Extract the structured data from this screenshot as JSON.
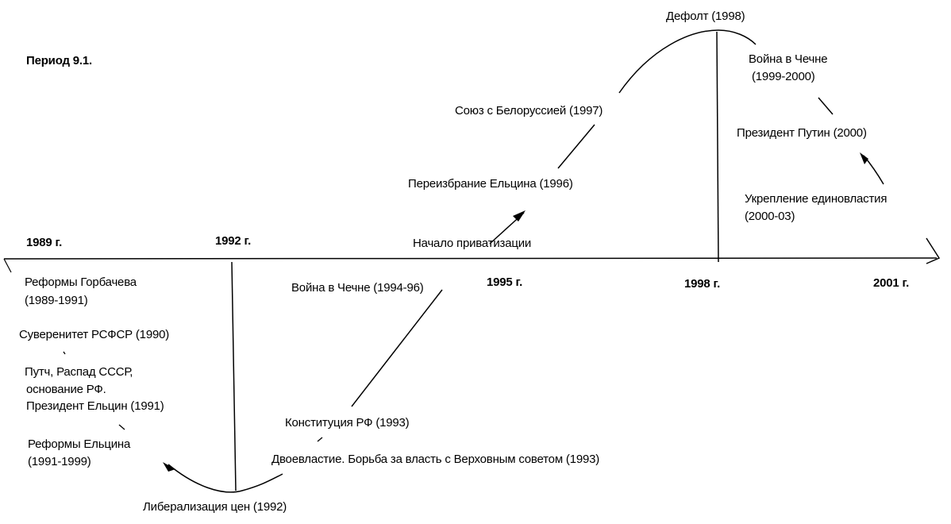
{
  "title": "Период 9.1.",
  "years": [
    "1989 г.",
    "1992 г.",
    "1995 г.",
    "1998 г.",
    "2001 г."
  ],
  "events": {
    "gorbachev": "Реформы Горбачева",
    "gorbachev_years": "(1989-1991)",
    "sovereignty": "Суверенитет РСФСР (1990)",
    "putsch_1": "Путч, Распад СССР,",
    "putsch_2": "основание РФ.",
    "president_yeltsin": "Президент Ельцин (1991)",
    "yeltsin_reforms": "Реформы Ельцина",
    "yeltsin_reforms_years": "(1991-1999)",
    "liberalization": "Либерализация цен  (1992)",
    "dual_power": "Двоевластие. Борьба за власть с Верховным советом (1993)",
    "constitution": "Конституция РФ (1993)",
    "chechnya_1": "Война в Чечне (1994-96)",
    "privatization": "Начало приватизации",
    "reelection": "Переизбрание Ельцина (1996)",
    "belarus": "Союз с Белоруссией (1997)",
    "default": "Дефолт (1998)",
    "chechnya_2": "Война в Чечне",
    "chechnya_2_years": "(1999-2000)",
    "putin": "Президент Путин (2000)",
    "power_1": "Укрепление единовластия",
    "power_2": "(2000-03)"
  }
}
